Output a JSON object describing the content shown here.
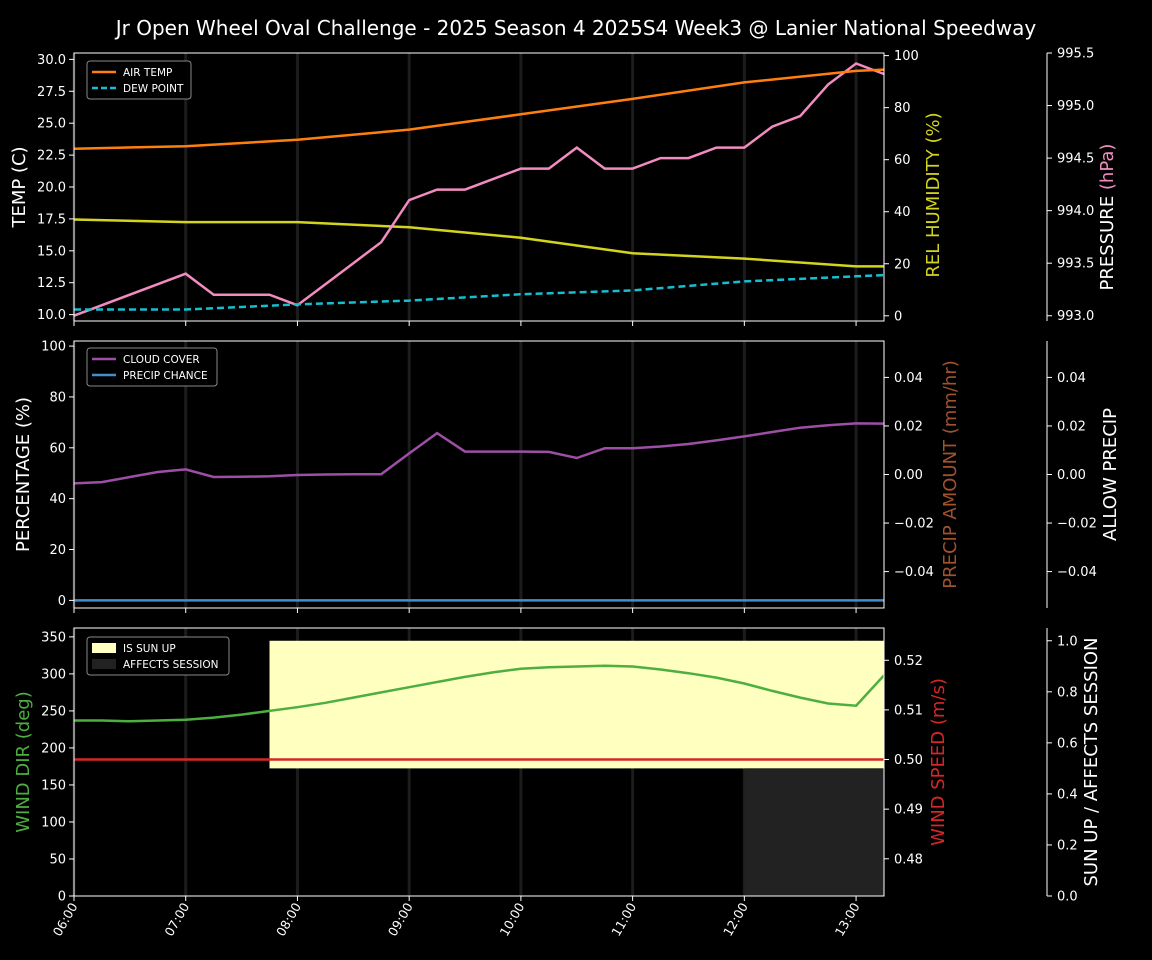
{
  "title": "Jr Open Wheel Oval Challenge - 2025 Season 4 2025S4 Week3 @ Lanier National Speedway",
  "colors": {
    "air_temp": "#ff7f0e",
    "dew_point": "#17becf",
    "humidity": "#d4d41f",
    "pressure": "#f28cc0",
    "cloud": "#9d4fa6",
    "precip_chance": "#3f8fd0",
    "precip_amount": "#a0522d",
    "wind_dir": "#4caf40",
    "wind_speed": "#d62728",
    "sun_up": "#ffffc0",
    "affects": "#222222"
  },
  "chart_data": [
    {
      "type": "line",
      "panel": "weather",
      "x_ticks": [
        "06:00",
        "07:00",
        "08:00",
        "09:00",
        "10:00",
        "11:00",
        "12:00",
        "13:00"
      ],
      "xlim": [
        6.0,
        13.25
      ],
      "ylabel": "TEMP (C)",
      "ylim": [
        9.5,
        30.5
      ],
      "yticks": [
        "10.0",
        "12.5",
        "15.0",
        "17.5",
        "20.0",
        "22.5",
        "25.0",
        "27.5",
        "30.0"
      ],
      "ylabel_right1": "REL HUMIDITY (%)",
      "ylim_right1": [
        -2,
        101
      ],
      "yticks_right1": [
        "0",
        "20",
        "40",
        "60",
        "80",
        "100"
      ],
      "ylabel_right2_main": "PRESSURE",
      "ylabel_right2_unit": "(hPa)",
      "ylim_right2": [
        992.95,
        995.5
      ],
      "yticks_right2": [
        "993.0",
        "993.5",
        "994.0",
        "994.5",
        "995.0",
        "995.5"
      ],
      "legend": [
        "AIR TEMP",
        "DEW POINT"
      ],
      "legend_position": "top-left",
      "series": [
        {
          "name": "AIR TEMP",
          "axis": "left",
          "x": [
            6,
            7,
            8,
            9,
            10,
            11,
            12,
            13,
            13.25
          ],
          "y": [
            23.0,
            23.2,
            23.7,
            24.5,
            25.7,
            26.9,
            28.2,
            29.1,
            29.2
          ]
        },
        {
          "name": "DEW POINT",
          "axis": "left",
          "x": [
            6,
            7,
            8,
            9,
            10,
            11,
            12,
            13,
            13.25
          ],
          "y": [
            10.4,
            10.4,
            10.8,
            11.1,
            11.6,
            11.9,
            12.6,
            13.0,
            13.1
          ]
        },
        {
          "name": "REL HUMIDITY",
          "axis": "right1",
          "x": [
            6,
            7,
            8,
            9,
            10,
            11,
            12,
            13,
            13.25
          ],
          "y": [
            37,
            36,
            36,
            34,
            30,
            24,
            22,
            19,
            19
          ]
        },
        {
          "name": "PRESSURE",
          "axis": "right2",
          "x": [
            6,
            7,
            7.25,
            7.5,
            7.75,
            8,
            8.25,
            8.5,
            8.75,
            9,
            9.25,
            9.5,
            9.75,
            10,
            10.25,
            10.5,
            10.75,
            11,
            11.25,
            11.5,
            11.75,
            12,
            12.25,
            12.5,
            12.75,
            13,
            13.25
          ],
          "y": [
            993.0,
            993.4,
            993.2,
            993.2,
            993.2,
            993.1,
            993.3,
            993.5,
            993.7,
            994.1,
            994.2,
            994.2,
            994.3,
            994.4,
            994.4,
            994.6,
            994.4,
            994.4,
            994.5,
            994.5,
            994.6,
            994.6,
            994.8,
            994.9,
            995.2,
            995.4,
            995.3
          ]
        }
      ]
    },
    {
      "type": "line",
      "panel": "clouds",
      "ylabel": "PERCENTAGE (%)",
      "ylim": [
        -3,
        102
      ],
      "yticks": [
        "0",
        "20",
        "40",
        "60",
        "80",
        "100"
      ],
      "ylabel_right1": "PRECIP AMOUNT (mm/hr)",
      "ylim_right1": [
        -0.055,
        0.055
      ],
      "yticks_right1": [
        "−0.04",
        "−0.02",
        "0.00",
        "0.02",
        "0.04"
      ],
      "ylabel_right2": "ALLOW PRECIP",
      "ylim_right2": [
        -0.055,
        0.055
      ],
      "yticks_right2": [
        "−0.04",
        "−0.02",
        "0.00",
        "0.02",
        "0.04"
      ],
      "legend": [
        "CLOUD COVER",
        "PRECIP CHANCE"
      ],
      "legend_position": "top-left",
      "series": [
        {
          "name": "CLOUD COVER",
          "axis": "left",
          "x": [
            6,
            6.25,
            6.5,
            6.75,
            7,
            7.25,
            7.5,
            7.75,
            8,
            8.25,
            8.5,
            8.75,
            9,
            9.25,
            9.5,
            9.75,
            10,
            10.25,
            10.5,
            10.75,
            11,
            11.25,
            11.5,
            11.75,
            12,
            12.25,
            12.5,
            12.75,
            13,
            13.25
          ],
          "y": [
            46,
            46.5,
            48.5,
            50.5,
            51.5,
            48.5,
            48.6,
            48.8,
            49.3,
            49.5,
            49.6,
            49.6,
            57.8,
            65.8,
            58.5,
            58.5,
            58.5,
            58.4,
            56,
            59.8,
            59.8,
            60.5,
            61.5,
            62.9,
            64.5,
            66.2,
            67.9,
            68.9,
            69.6,
            69.5
          ]
        },
        {
          "name": "PRECIP CHANCE",
          "axis": "left",
          "x": [
            6,
            13.25
          ],
          "y": [
            0,
            0
          ]
        }
      ]
    },
    {
      "type": "line",
      "panel": "wind",
      "ylabel": "WIND DIR (deg)",
      "ylim": [
        0,
        362
      ],
      "yticks": [
        "0",
        "50",
        "100",
        "150",
        "200",
        "250",
        "300",
        "350"
      ],
      "ylabel_right1": "WIND SPEED (m/s)",
      "ylim_right1": [
        0.4725,
        0.5265
      ],
      "yticks_right1": [
        "0.48",
        "0.49",
        "0.50",
        "0.51",
        "0.52"
      ],
      "ylabel_right2": "SUN UP / AFFECTS SESSION",
      "ylim_right2": [
        0,
        1.05
      ],
      "yticks_right2": [
        "0.0",
        "0.2",
        "0.4",
        "0.6",
        "0.8",
        "1.0"
      ],
      "legend": [
        "IS SUN UP",
        "AFFECTS SESSION"
      ],
      "legend_position": "top-left",
      "spans": [
        {
          "name": "IS SUN UP",
          "x0": 7.75,
          "x1": 13.25,
          "y0": 0.5,
          "y1": 1.0
        },
        {
          "name": "AFFECTS SESSION",
          "x0": 12.0,
          "x1": 13.25,
          "y0": 0,
          "y1": 0.5
        }
      ],
      "series": [
        {
          "name": "WIND DIR",
          "axis": "left",
          "x": [
            6,
            6.25,
            6.5,
            6.75,
            7,
            7.25,
            7.5,
            7.75,
            8,
            8.25,
            8.5,
            8.75,
            9,
            9.25,
            9.5,
            9.75,
            10,
            10.25,
            10.5,
            10.75,
            11,
            11.25,
            11.5,
            11.75,
            12,
            12.25,
            12.5,
            12.75,
            13,
            13.25
          ],
          "y": [
            237,
            237,
            236,
            237,
            238,
            241,
            245,
            250,
            255,
            261,
            268,
            275,
            282,
            289,
            296,
            302,
            307,
            309,
            310,
            311,
            310,
            306,
            301,
            295,
            287,
            277,
            268,
            260,
            257,
            298
          ]
        },
        {
          "name": "WIND SPEED",
          "axis": "right1",
          "x": [
            6,
            13.25
          ],
          "y": [
            0.5,
            0.5
          ]
        }
      ]
    }
  ]
}
